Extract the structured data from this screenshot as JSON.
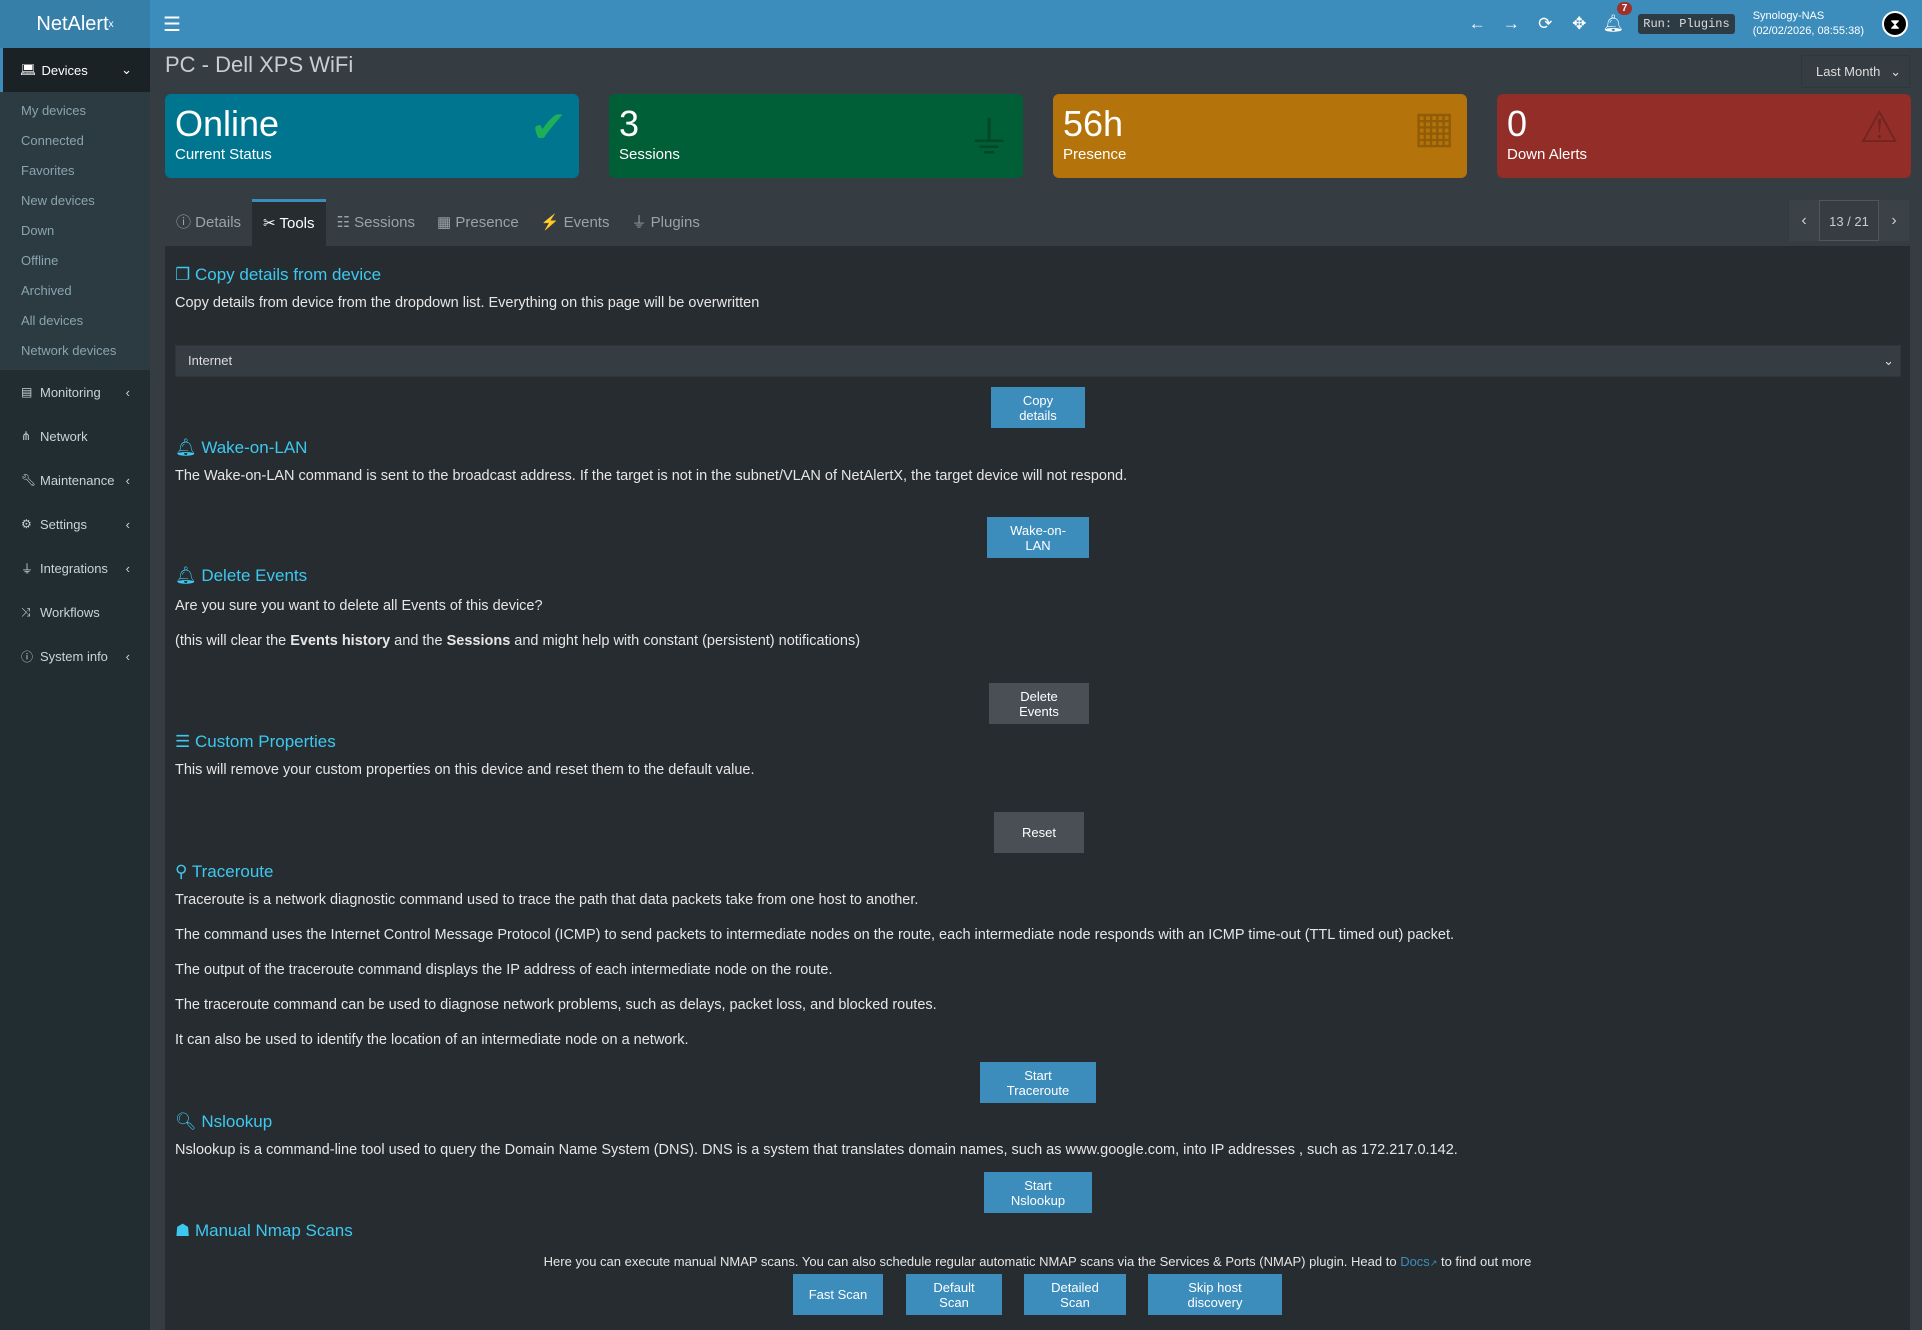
{
  "app": {
    "logo": "NetAlert",
    "logo_sup": "x"
  },
  "header": {
    "notifications": "7",
    "run_status": "Run: Plugins",
    "host": "Synology-NAS",
    "datetime": "(02/02/2026, 08:55:38)"
  },
  "sidebar": {
    "devices": "Devices",
    "sub": [
      "My devices",
      "Connected",
      "Favorites",
      "New devices",
      "Down",
      "Offline",
      "Archived",
      "All devices",
      "Network devices"
    ],
    "items": [
      {
        "label": "Monitoring",
        "icon": "chart-icon",
        "sub": true
      },
      {
        "label": "Network",
        "icon": "sitemap-icon",
        "sub": false
      },
      {
        "label": "Maintenance",
        "icon": "wrench-icon",
        "sub": true
      },
      {
        "label": "Settings",
        "icon": "gear-icon",
        "sub": true
      },
      {
        "label": "Integrations",
        "icon": "plug-icon",
        "sub": true
      },
      {
        "label": "Workflows",
        "icon": "shuffle-icon",
        "sub": false
      },
      {
        "label": "System info",
        "icon": "info-icon",
        "sub": true
      }
    ]
  },
  "page": {
    "title": "PC - Dell XPS WiFi",
    "range": "Last Month"
  },
  "cards": [
    {
      "value": "Online",
      "label": "Current Status",
      "color": "#00758f"
    },
    {
      "value": "3",
      "label": "Sessions",
      "color": "#005f36"
    },
    {
      "value": "56h",
      "label": "Presence",
      "color": "#b5740b"
    },
    {
      "value": "0",
      "label": "Down Alerts",
      "color": "#922e27"
    }
  ],
  "tabs": [
    "Details",
    "Tools",
    "Sessions",
    "Presence",
    "Events",
    "Plugins"
  ],
  "pager": "13 / 21",
  "copy": {
    "title": "Copy details from device",
    "desc": "Copy details from device from the dropdown list. Everything on this page will be overwritten",
    "selected": "Internet",
    "button": "Copy details"
  },
  "wol": {
    "title": "Wake-on-LAN",
    "desc": "The Wake-on-LAN command is sent to the broadcast address. If the target is not in the subnet/VLAN of NetAlertX, the target device will not respond.",
    "button": "Wake-on-LAN"
  },
  "delete": {
    "title": "Delete Events",
    "q": "Are you sure you want to delete all Events of this device?",
    "p1": "(this will clear the ",
    "b1": "Events history",
    "p2": " and the ",
    "b2": "Sessions",
    "p3": " and might help with constant (persistent) notifications)",
    "button": "Delete Events"
  },
  "custom": {
    "title": "Custom Properties",
    "desc": "This will remove your custom properties on this device and reset them to the default value.",
    "button": "Reset"
  },
  "traceroute": {
    "title": "Traceroute",
    "lines": [
      "Traceroute is a network diagnostic command used to trace the path that data packets take from one host to another.",
      "The command uses the Internet Control Message Protocol (ICMP) to send packets to intermediate nodes on the route, each intermediate node responds with an ICMP time-out (TTL timed out) packet.",
      "The output of the traceroute command displays the IP address of each intermediate node on the route.",
      "The traceroute command can be used to diagnose network problems, such as delays, packet loss, and blocked routes.",
      "It can also be used to identify the location of an intermediate node on a network."
    ],
    "button": "Start Traceroute"
  },
  "nslookup": {
    "title": "Nslookup",
    "desc": "Nslookup is a command-line tool used to query the Domain Name System (DNS). DNS is a system that translates domain names, such as www.google.com, into IP addresses , such as 172.217.0.142.",
    "button": "Start Nslookup"
  },
  "nmap": {
    "title": "Manual Nmap Scans",
    "desc": "Here you can execute manual NMAP scans. You can also schedule regular automatic NMAP scans via the Services & Ports (NMAP) plugin. Head to ",
    "link": "Docs",
    "after": " to find out more",
    "buttons": [
      "Fast Scan",
      "Default Scan",
      "Detailed Scan",
      "Skip host discovery"
    ]
  }
}
